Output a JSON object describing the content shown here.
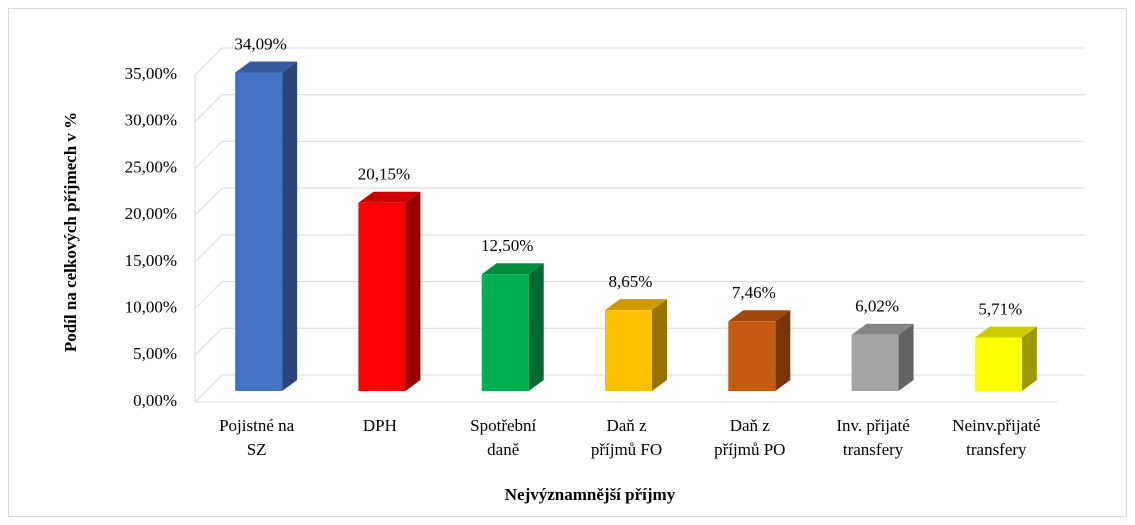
{
  "chart_data": {
    "type": "bar3d",
    "x_label": "Nejvýznamnější příjmy",
    "y_label": "Podíl na celkových příjmech v %",
    "categories": [
      [
        "Pojistné na",
        "SZ"
      ],
      [
        "DPH"
      ],
      [
        "Spotřební",
        "daně"
      ],
      [
        "Daň z",
        "příjmů FO"
      ],
      [
        "Daň z",
        "příjmů PO"
      ],
      [
        "Inv. přijaté",
        "transfery"
      ],
      [
        "Neinv.přijaté",
        "transfery"
      ]
    ],
    "values": [
      34.09,
      20.15,
      12.5,
      8.65,
      7.46,
      6.02,
      5.71
    ],
    "value_labels": [
      "34,09%",
      "20,15%",
      "12,50%",
      "8,65%",
      "7,46%",
      "6,02%",
      "5,71%"
    ],
    "colors": [
      "#4472c4",
      "#ff0000",
      "#00b050",
      "#ffc000",
      "#c55a11",
      "#a5a5a5",
      "#ffff00"
    ],
    "ylim": [
      0,
      35
    ],
    "yticks": [
      {
        "value": 0,
        "label": "0,00%"
      },
      {
        "value": 5,
        "label": "5,00%"
      },
      {
        "value": 10,
        "label": "10,00%"
      },
      {
        "value": 15,
        "label": "15,00%"
      },
      {
        "value": 20,
        "label": "20,00%"
      },
      {
        "value": 25,
        "label": "25,00%"
      },
      {
        "value": 30,
        "label": "30,00%"
      },
      {
        "value": 35,
        "label": "35,00%"
      }
    ],
    "grid": true
  }
}
